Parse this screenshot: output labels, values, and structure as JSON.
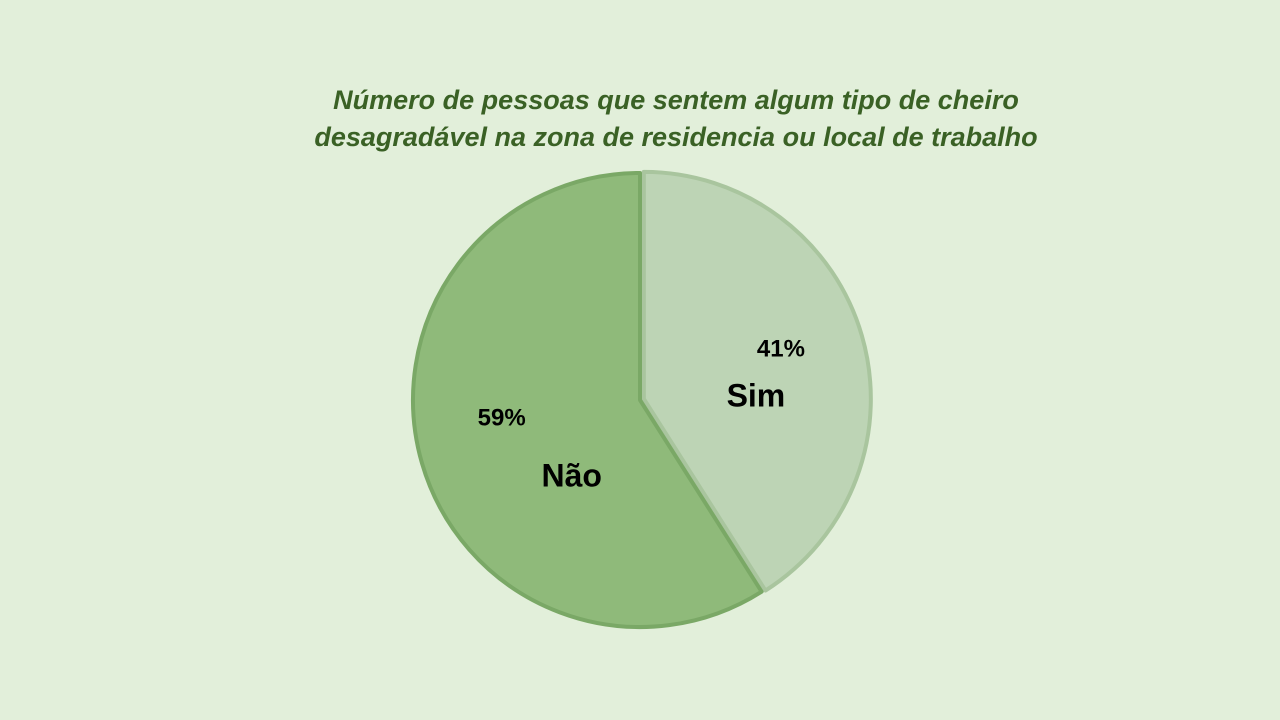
{
  "chart_data": {
    "type": "pie",
    "title": "Número de pessoas que sentem algum tipo de cheiro desagradável na zona de residencia ou local de trabalho",
    "categories": [
      "Sim",
      "Não"
    ],
    "values": [
      41,
      59
    ],
    "value_labels": [
      "41%",
      "59%"
    ],
    "colors": [
      "#bdd4b5",
      "#8fba7a"
    ]
  }
}
